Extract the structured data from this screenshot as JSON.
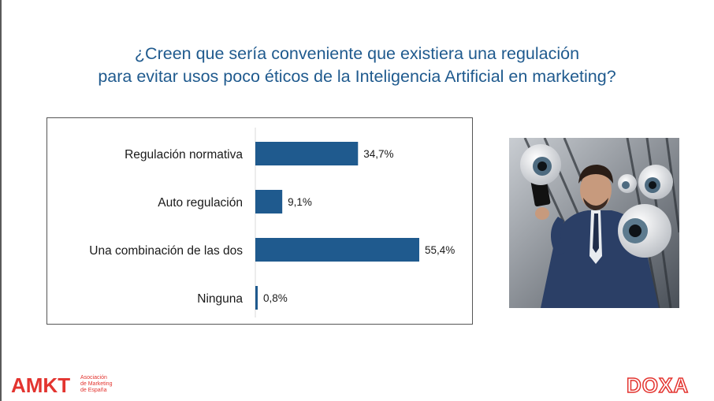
{
  "title_line1": "¿Creen que sería conveniente que existiera una regulación",
  "title_line2": "para evitar usos poco éticos de la Inteligencia Artificial en marketing?",
  "chart_data": {
    "type": "bar",
    "orientation": "horizontal",
    "categories": [
      "Regulación normativa",
      "Auto regulación",
      "Una combinación de las dos",
      "Ninguna"
    ],
    "values": [
      34.7,
      9.1,
      55.4,
      0.8
    ],
    "value_labels": [
      "34,7%",
      "9,1%",
      "55,4%",
      "0,8%"
    ],
    "bar_color": "#1f5a8e",
    "xlim": [
      0,
      60
    ],
    "grid": false,
    "legend": "none"
  },
  "brand": {
    "amkt_logo": "AMKT",
    "amkt_line1": "Asociación",
    "amkt_line2": "de Marketing",
    "amkt_line3": "de España",
    "doxa_logo": "DOXA",
    "accent_color": "#e3342f"
  },
  "photo_icon": "businessman-with-phone-and-floating-eyeballs-photo"
}
